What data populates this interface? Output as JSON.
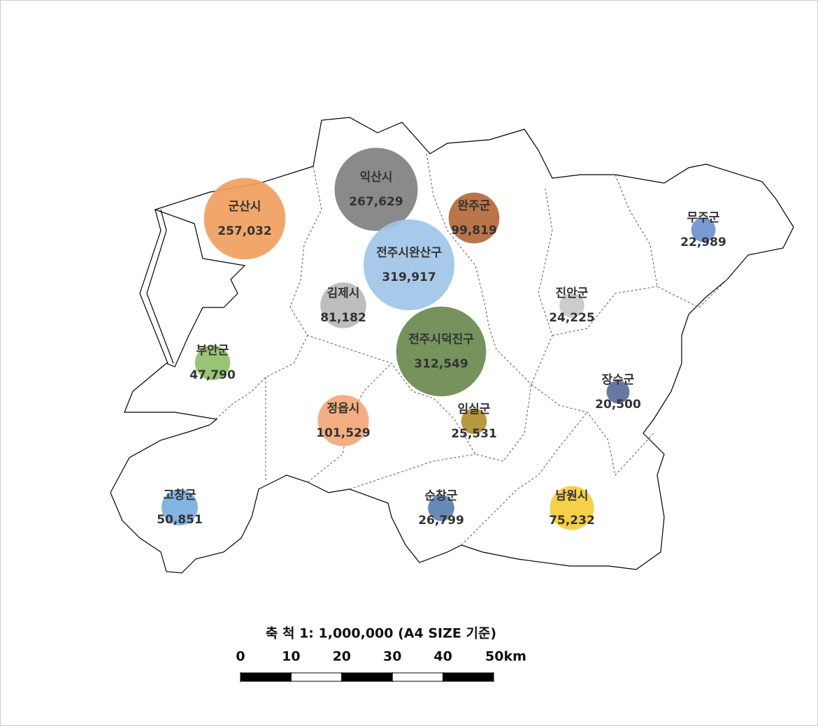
{
  "map": {
    "regions": [
      {
        "name": "군산시",
        "value": 257032,
        "label": "257,032",
        "color": "#f0a060"
      },
      {
        "name": "익산시",
        "value": 267629,
        "label": "267,629",
        "color": "#808080"
      },
      {
        "name": "완주군",
        "value": 99819,
        "label": "99,819",
        "color": "#b5693a"
      },
      {
        "name": "전주시완산구",
        "value": 319917,
        "label": "319,917",
        "color": "#9fc5e8"
      },
      {
        "name": "김제시",
        "value": 81182,
        "label": "81,182",
        "color": "#b8b8b8"
      },
      {
        "name": "전주시덕진구",
        "value": 312549,
        "label": "312,549",
        "color": "#6a8a50"
      },
      {
        "name": "부안군",
        "value": 47790,
        "label": "47,790",
        "color": "#8fbf6a"
      },
      {
        "name": "진안군",
        "value": 24225,
        "label": "24,225",
        "color": "#c8c8c8"
      },
      {
        "name": "무주군",
        "value": 22989,
        "label": "22,989",
        "color": "#7090d0"
      },
      {
        "name": "장수군",
        "value": 20500,
        "label": "20,500",
        "color": "#5a6e9a"
      },
      {
        "name": "정읍시",
        "value": 101529,
        "label": "101,529",
        "color": "#f2a878"
      },
      {
        "name": "임실군",
        "value": 25531,
        "label": "25,531",
        "color": "#b09030"
      },
      {
        "name": "고창군",
        "value": 50851,
        "label": "50,851",
        "color": "#7aaee0"
      },
      {
        "name": "순창군",
        "value": 26799,
        "label": "26,799",
        "color": "#5a80b0"
      },
      {
        "name": "남원시",
        "value": 75232,
        "label": "75,232",
        "color": "#f5cc3a"
      }
    ],
    "scale_title": "축 척 1: 1,000,000 (A4 SIZE 기준)",
    "scale_ticks": [
      0,
      10,
      20,
      30,
      40,
      {
        "value": 50,
        "label": "50km"
      }
    ]
  }
}
